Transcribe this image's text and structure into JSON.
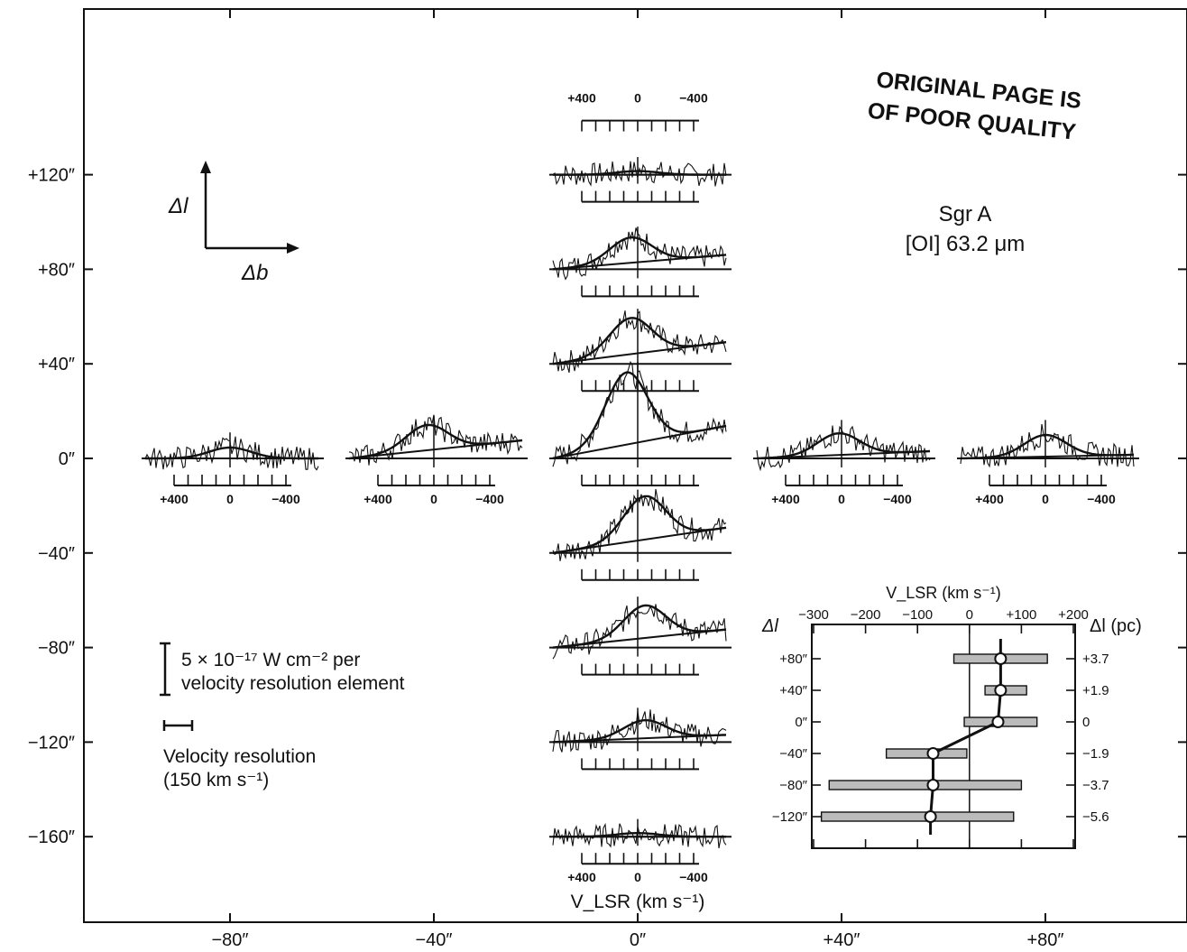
{
  "chart_data": {
    "type": "line",
    "title": "",
    "xlabel": "",
    "ylabel": "",
    "xlim": [
      -100,
      100
    ],
    "ylim": [
      -190,
      160
    ],
    "x_ticks": [
      -80,
      -40,
      0,
      40,
      80
    ],
    "y_ticks": [
      120,
      80,
      40,
      0,
      -40,
      -80,
      -120,
      -160
    ],
    "x_tick_labels": [
      "−80″",
      "−40″",
      "0″",
      "+40″",
      "+80″"
    ],
    "y_tick_labels": [
      "+120″",
      "+80″",
      "+40″",
      "0″",
      "−40″",
      "−80″",
      "−120″",
      "−160″"
    ],
    "spectrum_tick_labels": [
      "+400",
      "0",
      "−400"
    ],
    "spectrum_axis_label": "V_LSR (km s⁻¹)",
    "spectra": [
      {
        "offset_b": 0,
        "offset_l": 120,
        "line_amplitude": 0.05,
        "peak_velocity": 0,
        "continuum": [
          0.0,
          0.0
        ]
      },
      {
        "offset_b": 0,
        "offset_l": 80,
        "line_amplitude": 0.35,
        "peak_velocity": 50,
        "continuum": [
          0.0,
          0.2
        ]
      },
      {
        "offset_b": 0,
        "offset_l": 40,
        "line_amplitude": 0.5,
        "peak_velocity": 50,
        "continuum": [
          0.0,
          0.3
        ]
      },
      {
        "offset_b": 0,
        "offset_l": 0,
        "line_amplitude": 1.0,
        "peak_velocity": 80,
        "continuum": [
          0.0,
          0.45
        ]
      },
      {
        "offset_b": 0,
        "offset_l": -40,
        "line_amplitude": 0.6,
        "peak_velocity": -50,
        "continuum": [
          0.0,
          0.35
        ]
      },
      {
        "offset_b": 0,
        "offset_l": -80,
        "line_amplitude": 0.45,
        "peak_velocity": -50,
        "continuum": [
          0.0,
          0.25
        ]
      },
      {
        "offset_b": 0,
        "offset_l": -120,
        "line_amplitude": 0.25,
        "peak_velocity": -50,
        "continuum": [
          0.0,
          0.1
        ]
      },
      {
        "offset_b": 0,
        "offset_l": -160,
        "line_amplitude": 0.05,
        "peak_velocity": 0,
        "continuum": [
          0.0,
          0.0
        ]
      },
      {
        "offset_b": -80,
        "offset_l": 0,
        "line_amplitude": 0.15,
        "peak_velocity": 0,
        "continuum": [
          0.0,
          0.0
        ]
      },
      {
        "offset_b": -40,
        "offset_l": 0,
        "line_amplitude": 0.35,
        "peak_velocity": 50,
        "continuum": [
          0.0,
          0.25
        ]
      },
      {
        "offset_b": 40,
        "offset_l": 0,
        "line_amplitude": 0.3,
        "peak_velocity": 20,
        "continuum": [
          0.0,
          0.1
        ]
      },
      {
        "offset_b": 80,
        "offset_l": 0,
        "line_amplitude": 0.3,
        "peak_velocity": 0,
        "continuum": [
          0.0,
          0.05
        ]
      }
    ],
    "inset": {
      "xlabel": "V_LSR (km s⁻¹)",
      "left_label": "Δl",
      "right_label": "Δl  (pc)",
      "xlim": [
        -300,
        200
      ],
      "x_ticks": [
        -300,
        -200,
        -100,
        0,
        100,
        200
      ],
      "x_tick_labels": [
        "−300",
        "−200",
        "−100",
        "0",
        "+100",
        "+200"
      ],
      "rows": [
        {
          "dl_arcsec": "+80″",
          "dl_pc": "+3.7",
          "velocity": 60,
          "range": [
            -30,
            150
          ]
        },
        {
          "dl_arcsec": "+40″",
          "dl_pc": "+1.9",
          "velocity": 60,
          "range": [
            30,
            110
          ]
        },
        {
          "dl_arcsec": "0″",
          "dl_pc": "0",
          "velocity": 55,
          "range": [
            -10,
            130
          ]
        },
        {
          "dl_arcsec": "−40″",
          "dl_pc": "−1.9",
          "velocity": -70,
          "range": [
            -160,
            -5
          ]
        },
        {
          "dl_arcsec": "−80″",
          "dl_pc": "−3.7",
          "velocity": -70,
          "range": [
            -270,
            100
          ]
        },
        {
          "dl_arcsec": "−120″",
          "dl_pc": "−5.6",
          "velocity": -75,
          "range": [
            -285,
            85
          ]
        }
      ]
    },
    "annotations": {
      "stamp_line1": "ORIGINAL PAGE IS",
      "stamp_line2": "OF POOR QUALITY",
      "source": "Sgr A",
      "line": "[OI]  63.2 μm",
      "arrow_vertical_label": "Δl",
      "arrow_horizontal_label": "Δb",
      "scale_bar_line1": "5 × 10⁻¹⁷ W cm⁻² per",
      "scale_bar_line2": "velocity resolution element",
      "resolution_line1": "Velocity resolution",
      "resolution_line2": "(150 km s⁻¹)"
    }
  }
}
